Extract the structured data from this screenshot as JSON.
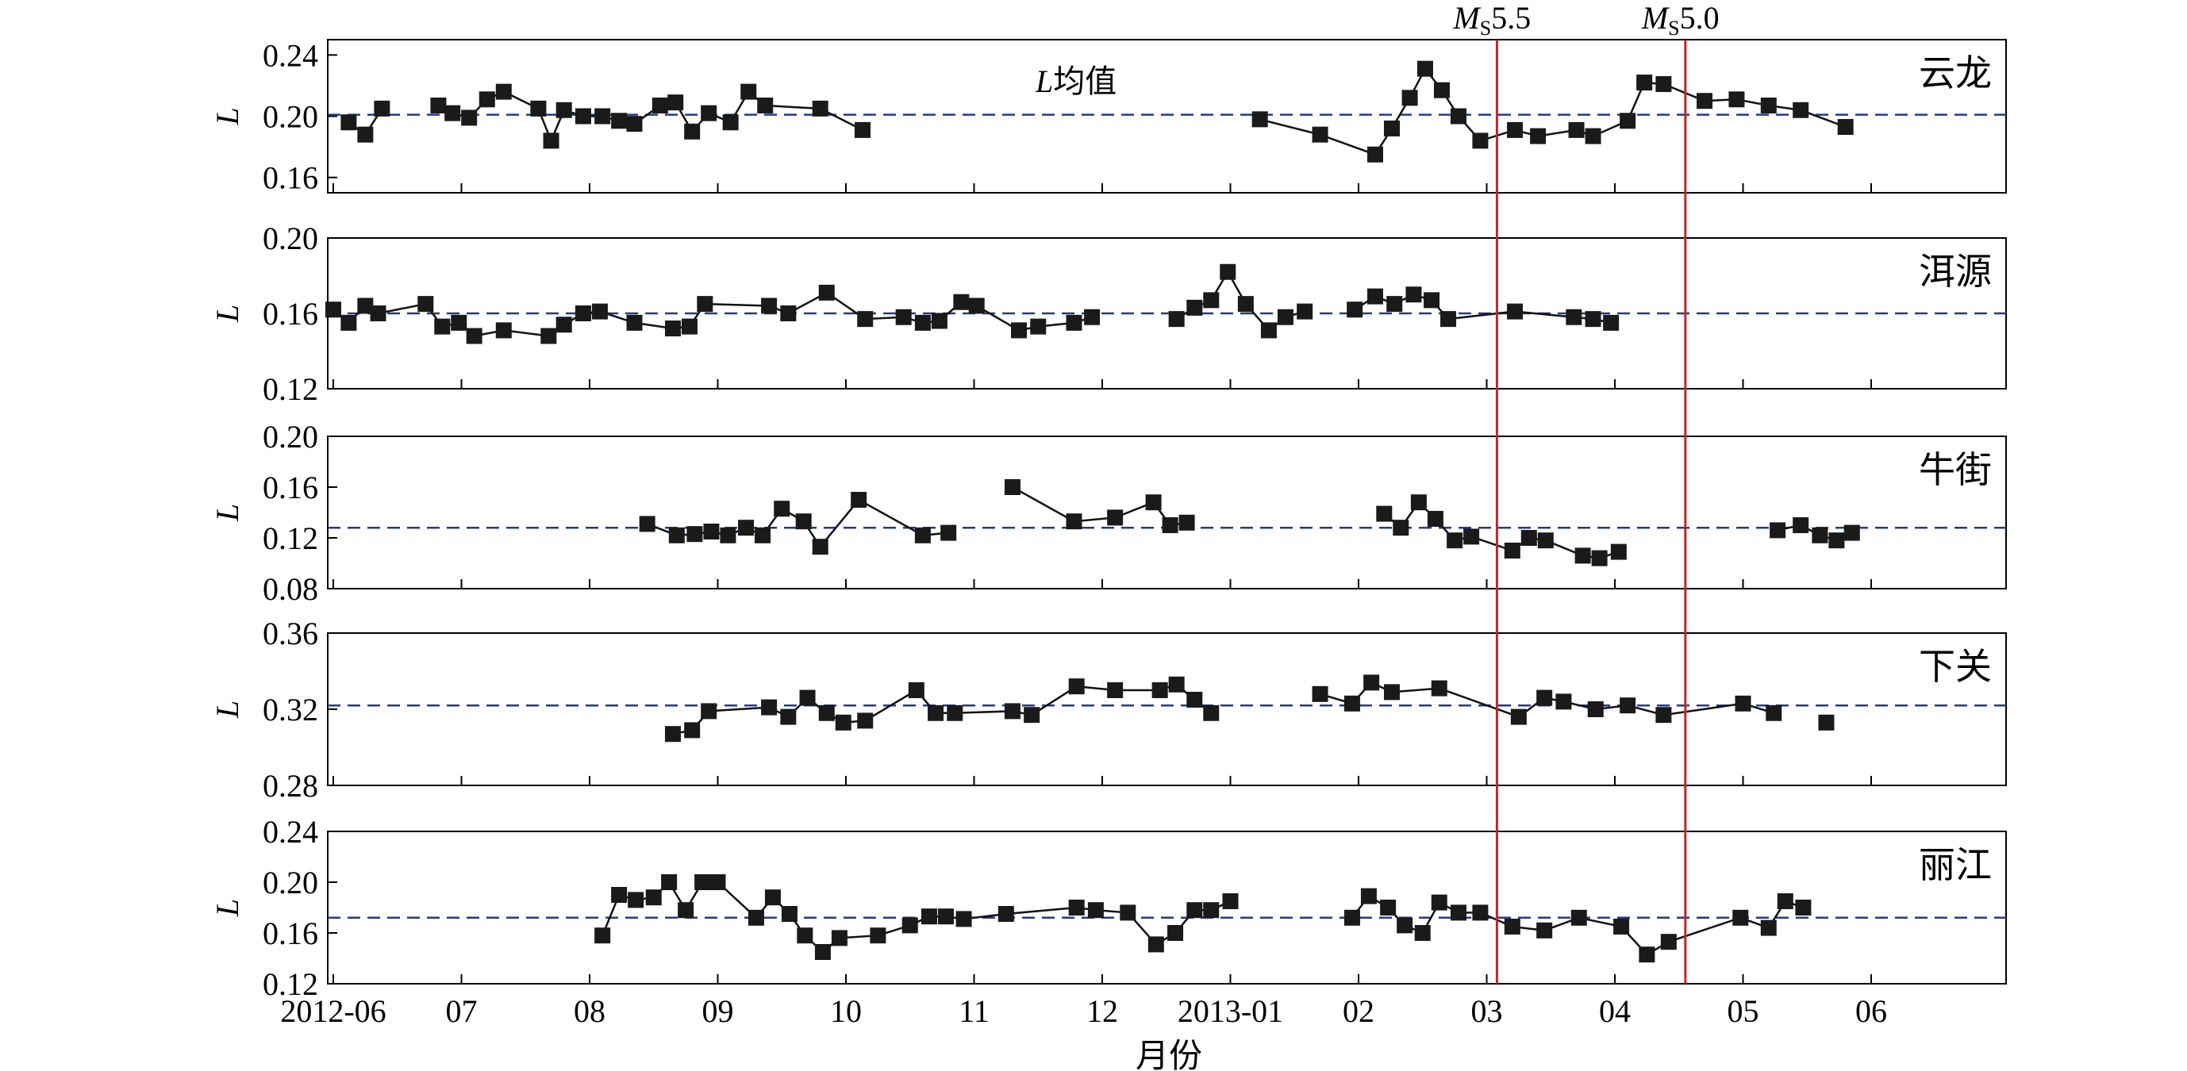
{
  "chart_data": {
    "type": "line",
    "xlabel": "月份",
    "x_ticks": [
      "2012-06",
      "07",
      "08",
      "09",
      "10",
      "11",
      "12",
      "2013-01",
      "02",
      "03",
      "04",
      "05",
      "06"
    ],
    "mean_label": {
      "prefix": "L",
      "text": "均值"
    },
    "events": [
      {
        "label_m": "M",
        "label_sub": "S",
        "label_val": "5.5",
        "x": 9.08
      },
      {
        "label_m": "M",
        "label_sub": "S",
        "label_val": "5.0",
        "x": 10.55
      }
    ],
    "panels": [
      {
        "name": "云龙",
        "ylabel": "L",
        "ylim": [
          0.15,
          0.25
        ],
        "yticks": [
          "0.24",
          "0.20",
          "0.16"
        ],
        "ytick_values": [
          0.24,
          0.2,
          0.16
        ],
        "mean": 0.201,
        "segments": [
          [
            [
              0.12,
              0.196
            ],
            [
              0.25,
              0.188
            ],
            [
              0.38,
              0.205
            ]
          ],
          [
            [
              0.82,
              0.207
            ],
            [
              0.93,
              0.202
            ],
            [
              1.06,
              0.199
            ],
            [
              1.2,
              0.211
            ],
            [
              1.33,
              0.216
            ],
            [
              1.6,
              0.205
            ],
            [
              1.7,
              0.184
            ],
            [
              1.8,
              0.204
            ],
            [
              1.95,
              0.2
            ],
            [
              2.1,
              0.2
            ],
            [
              2.23,
              0.197
            ],
            [
              2.35,
              0.195
            ],
            [
              2.55,
              0.207
            ],
            [
              2.67,
              0.209
            ],
            [
              2.8,
              0.19
            ],
            [
              2.93,
              0.202
            ],
            [
              3.1,
              0.196
            ],
            [
              3.24,
              0.216
            ],
            [
              3.37,
              0.207
            ],
            [
              3.8,
              0.205
            ],
            [
              4.13,
              0.191
            ]
          ],
          [
            [
              7.23,
              0.198
            ],
            [
              7.7,
              0.188
            ],
            [
              8.13,
              0.175
            ],
            [
              8.26,
              0.192
            ],
            [
              8.4,
              0.212
            ],
            [
              8.52,
              0.231
            ],
            [
              8.65,
              0.217
            ],
            [
              8.78,
              0.2
            ],
            [
              8.95,
              0.184
            ],
            [
              9.22,
              0.191
            ],
            [
              9.4,
              0.187
            ],
            [
              9.7,
              0.191
            ],
            [
              9.83,
              0.187
            ],
            [
              10.1,
              0.197
            ],
            [
              10.23,
              0.222
            ],
            [
              10.38,
              0.221
            ],
            [
              10.7,
              0.21
            ],
            [
              10.95,
              0.211
            ],
            [
              11.2,
              0.207
            ],
            [
              11.45,
              0.204
            ],
            [
              11.8,
              0.193
            ]
          ]
        ]
      },
      {
        "name": "洱源",
        "ylabel": "L",
        "ylim": [
          0.12,
          0.2
        ],
        "yticks": [
          "0.20",
          "0.16",
          "0.12"
        ],
        "ytick_values": [
          0.2,
          0.16,
          0.12
        ],
        "mean": 0.16,
        "segments": [
          [
            [
              0,
              0.162
            ],
            [
              0.12,
              0.155
            ],
            [
              0.25,
              0.164
            ],
            [
              0.35,
              0.16
            ],
            [
              0.72,
              0.165
            ],
            [
              0.85,
              0.153
            ],
            [
              0.98,
              0.155
            ],
            [
              1.1,
              0.148
            ],
            [
              1.33,
              0.151
            ],
            [
              1.68,
              0.148
            ],
            [
              1.8,
              0.154
            ],
            [
              1.95,
              0.16
            ],
            [
              2.08,
              0.161
            ],
            [
              2.35,
              0.155
            ],
            [
              2.65,
              0.152
            ],
            [
              2.78,
              0.153
            ],
            [
              2.9,
              0.165
            ],
            [
              3.4,
              0.164
            ],
            [
              3.55,
              0.16
            ],
            [
              3.85,
              0.171
            ],
            [
              4.15,
              0.157
            ],
            [
              4.45,
              0.158
            ],
            [
              4.6,
              0.155
            ],
            [
              4.73,
              0.156
            ],
            [
              4.9,
              0.166
            ],
            [
              5.02,
              0.164
            ],
            [
              5.35,
              0.151
            ],
            [
              5.5,
              0.153
            ],
            [
              5.78,
              0.155
            ],
            [
              5.92,
              0.158
            ]
          ],
          [
            [
              6.58,
              0.157
            ],
            [
              6.72,
              0.163
            ],
            [
              6.85,
              0.167
            ],
            [
              6.98,
              0.182
            ],
            [
              7.12,
              0.165
            ],
            [
              7.3,
              0.151
            ],
            [
              7.43,
              0.158
            ],
            [
              7.58,
              0.161
            ]
          ],
          [
            [
              7.97,
              0.162
            ],
            [
              8.13,
              0.169
            ],
            [
              8.28,
              0.165
            ],
            [
              8.43,
              0.17
            ],
            [
              8.57,
              0.167
            ],
            [
              8.7,
              0.157
            ],
            [
              9.22,
              0.161
            ],
            [
              9.68,
              0.158
            ],
            [
              9.83,
              0.157
            ],
            [
              9.97,
              0.155
            ]
          ]
        ]
      },
      {
        "name": "牛街",
        "ylabel": "L",
        "ylim": [
          0.08,
          0.2
        ],
        "yticks": [
          "0.20",
          "0.16",
          "0.12",
          "0.08"
        ],
        "ytick_values": [
          0.2,
          0.16,
          0.12,
          0.08
        ],
        "mean": 0.128,
        "segments": [
          [
            [
              2.45,
              0.131
            ],
            [
              2.68,
              0.122
            ],
            [
              2.82,
              0.123
            ],
            [
              2.95,
              0.125
            ],
            [
              3.08,
              0.122
            ],
            [
              3.22,
              0.128
            ],
            [
              3.35,
              0.122
            ],
            [
              3.5,
              0.143
            ],
            [
              3.67,
              0.133
            ],
            [
              3.8,
              0.113
            ],
            [
              4.1,
              0.15
            ],
            [
              4.6,
              0.122
            ],
            [
              4.8,
              0.124
            ]
          ],
          [
            [
              5.3,
              0.16
            ],
            [
              5.78,
              0.133
            ],
            [
              6.1,
              0.136
            ],
            [
              6.4,
              0.148
            ],
            [
              6.53,
              0.13
            ],
            [
              6.66,
              0.132
            ]
          ],
          [
            [
              8.2,
              0.139
            ],
            [
              8.33,
              0.128
            ],
            [
              8.47,
              0.148
            ],
            [
              8.6,
              0.135
            ],
            [
              8.75,
              0.118
            ],
            [
              8.88,
              0.121
            ],
            [
              9.2,
              0.11
            ],
            [
              9.33,
              0.12
            ],
            [
              9.46,
              0.118
            ],
            [
              9.75,
              0.106
            ],
            [
              9.88,
              0.104
            ],
            [
              10.03,
              0.109
            ]
          ],
          [
            [
              11.27,
              0.126
            ],
            [
              11.45,
              0.13
            ],
            [
              11.6,
              0.122
            ],
            [
              11.73,
              0.118
            ],
            [
              11.85,
              0.124
            ]
          ]
        ]
      },
      {
        "name": "下关",
        "ylabel": "L",
        "ylim": [
          0.28,
          0.36
        ],
        "yticks": [
          "0.36",
          "0.32",
          "0.28"
        ],
        "ytick_values": [
          0.36,
          0.32,
          0.28
        ],
        "mean": 0.322,
        "segments": [
          [
            [
              2.65,
              0.307
            ],
            [
              2.8,
              0.309
            ],
            [
              2.93,
              0.319
            ],
            [
              3.4,
              0.321
            ],
            [
              3.55,
              0.316
            ],
            [
              3.7,
              0.326
            ],
            [
              3.85,
              0.318
            ],
            [
              3.98,
              0.313
            ],
            [
              4.15,
              0.314
            ],
            [
              4.55,
              0.33
            ],
            [
              4.7,
              0.318
            ],
            [
              4.85,
              0.318
            ],
            [
              5.3,
              0.319
            ],
            [
              5.45,
              0.317
            ],
            [
              5.8,
              0.332
            ],
            [
              6.1,
              0.33
            ],
            [
              6.45,
              0.33
            ],
            [
              6.58,
              0.333
            ],
            [
              6.72,
              0.325
            ],
            [
              6.85,
              0.318
            ]
          ],
          [
            [
              7.7,
              0.328
            ],
            [
              7.95,
              0.323
            ],
            [
              8.1,
              0.334
            ],
            [
              8.26,
              0.329
            ],
            [
              8.63,
              0.331
            ],
            [
              9.25,
              0.316
            ],
            [
              9.45,
              0.326
            ],
            [
              9.6,
              0.324
            ],
            [
              9.85,
              0.32
            ],
            [
              10.1,
              0.322
            ],
            [
              10.38,
              0.317
            ],
            [
              11.0,
              0.323
            ],
            [
              11.24,
              0.318
            ]
          ],
          [
            [
              11.65,
              0.313
            ]
          ]
        ]
      },
      {
        "name": "丽江",
        "ylabel": "L",
        "ylim": [
          0.12,
          0.24
        ],
        "yticks": [
          "0.24",
          "0.20",
          "0.16",
          "0.12"
        ],
        "ytick_values": [
          0.24,
          0.2,
          0.16,
          0.12
        ],
        "mean": 0.172,
        "segments": [
          [
            [
              2.1,
              0.158
            ],
            [
              2.23,
              0.19
            ],
            [
              2.36,
              0.186
            ],
            [
              2.5,
              0.188
            ],
            [
              2.62,
              0.2
            ],
            [
              2.75,
              0.178
            ],
            [
              2.88,
              0.2
            ],
            [
              3.0,
              0.2
            ],
            [
              3.3,
              0.172
            ],
            [
              3.43,
              0.188
            ],
            [
              3.56,
              0.175
            ],
            [
              3.68,
              0.158
            ],
            [
              3.82,
              0.145
            ],
            [
              3.95,
              0.156
            ],
            [
              4.25,
              0.158
            ],
            [
              4.5,
              0.166
            ],
            [
              4.65,
              0.173
            ],
            [
              4.78,
              0.173
            ],
            [
              4.92,
              0.171
            ],
            [
              5.25,
              0.175
            ],
            [
              5.8,
              0.18
            ],
            [
              5.95,
              0.178
            ],
            [
              6.2,
              0.176
            ],
            [
              6.42,
              0.151
            ],
            [
              6.57,
              0.16
            ],
            [
              6.72,
              0.178
            ],
            [
              6.85,
              0.178
            ],
            [
              7.0,
              0.185
            ]
          ],
          [
            [
              7.95,
              0.172
            ],
            [
              8.08,
              0.189
            ],
            [
              8.23,
              0.18
            ],
            [
              8.36,
              0.166
            ],
            [
              8.5,
              0.16
            ],
            [
              8.63,
              0.184
            ],
            [
              8.78,
              0.176
            ],
            [
              8.95,
              0.176
            ],
            [
              9.2,
              0.165
            ],
            [
              9.45,
              0.162
            ],
            [
              9.72,
              0.172
            ],
            [
              10.05,
              0.165
            ],
            [
              10.25,
              0.143
            ],
            [
              10.42,
              0.153
            ],
            [
              10.98,
              0.172
            ],
            [
              11.2,
              0.164
            ],
            [
              11.33,
              0.185
            ],
            [
              11.47,
              0.18
            ]
          ]
        ]
      }
    ]
  }
}
